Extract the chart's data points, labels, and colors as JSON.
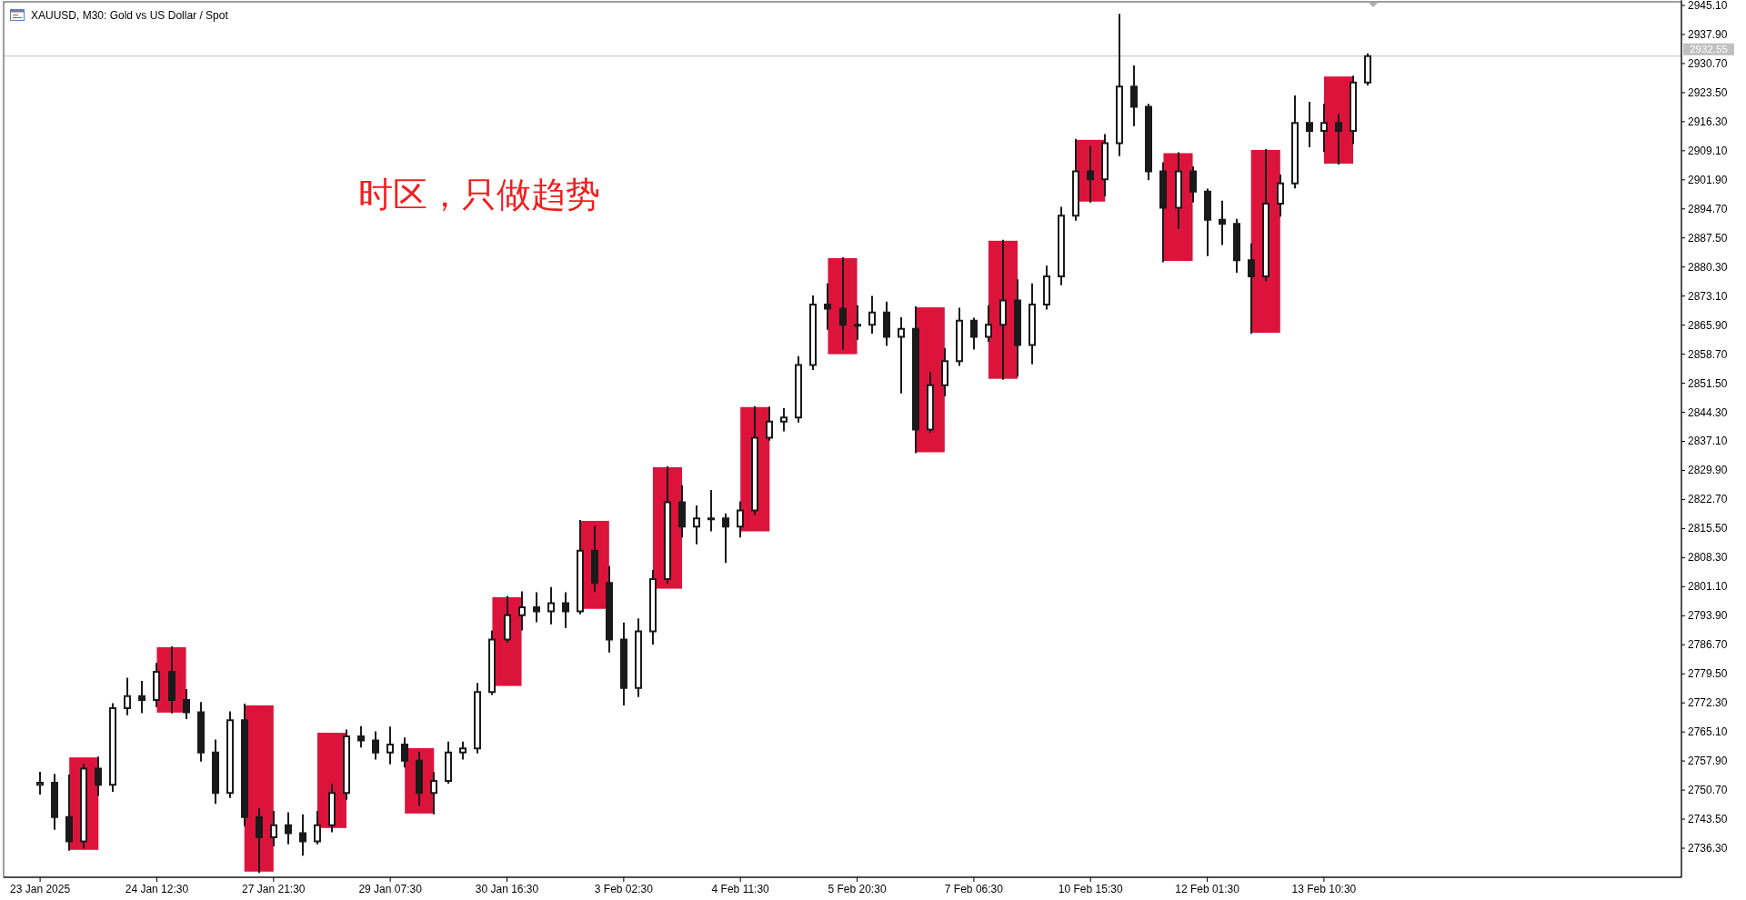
{
  "chart_data": {
    "type": "candlestick",
    "title": "XAUUSD, M30: Gold vs US Dollar / Spot",
    "annotations": [
      "时区，只做趋势"
    ],
    "categories": [
      null,
      null,
      "23 Jan 2025",
      null,
      null,
      null,
      null,
      null,
      null,
      null,
      "24 Jan 12:30",
      null,
      null,
      null,
      null,
      null,
      null,
      null,
      "27 Jan 21:30",
      null,
      null,
      null,
      null,
      null,
      null,
      null,
      "29 Jan 07:30",
      null,
      null,
      null,
      null,
      null,
      null,
      null,
      "30 Jan 16:30",
      null,
      null,
      null,
      null,
      null,
      null,
      null,
      "3 Feb 02:30",
      null,
      null,
      null,
      null,
      null,
      null,
      null,
      "4 Feb 11:30",
      null,
      null,
      null,
      null,
      null,
      null,
      null,
      "5 Feb 20:30",
      null,
      null,
      null,
      null,
      null,
      null,
      null,
      "7 Feb 06:30",
      null,
      null,
      null,
      null,
      null,
      null,
      null,
      "10 Feb 15:30",
      null,
      null,
      null,
      null,
      null,
      null,
      null,
      "12 Feb 01:30",
      null,
      null,
      null,
      null,
      null,
      null,
      null,
      "13 Feb 10:30",
      null,
      null,
      null,
      null,
      null,
      null,
      null,
      null,
      null,
      null,
      null,
      null,
      null,
      null,
      null,
      null,
      null,
      null,
      null,
      null,
      null,
      null,
      null,
      null
    ],
    "ylim": [
      2729.1,
      2946.0
    ],
    "yticks": [
      {
        "value": 2736.3,
        "label": "2736.30"
      },
      {
        "value": 2743.5,
        "label": "2743.50"
      },
      {
        "value": 2750.7,
        "label": "2750.70"
      },
      {
        "value": 2757.9,
        "label": "2757.90"
      },
      {
        "value": 2765.1,
        "label": "2765.10"
      },
      {
        "value": 2772.3,
        "label": "2772.30"
      },
      {
        "value": 2779.5,
        "label": "2779.50"
      },
      {
        "value": 2786.7,
        "label": "2786.70"
      },
      {
        "value": 2793.9,
        "label": "2793.90"
      },
      {
        "value": 2801.1,
        "label": "2801.10"
      },
      {
        "value": 2808.3,
        "label": "2808.30"
      },
      {
        "value": 2815.5,
        "label": "2815.50"
      },
      {
        "value": 2822.7,
        "label": "2822.70"
      },
      {
        "value": 2829.9,
        "label": "2829.90"
      },
      {
        "value": 2837.1,
        "label": "2837.10"
      },
      {
        "value": 2844.3,
        "label": "2844.30"
      },
      {
        "value": 2851.5,
        "label": "2851.50"
      },
      {
        "value": 2858.7,
        "label": "2858.70"
      },
      {
        "value": 2865.9,
        "label": "2865.90"
      },
      {
        "value": 2873.1,
        "label": "2873.10"
      },
      {
        "value": 2880.3,
        "label": "2880.30"
      },
      {
        "value": 2887.5,
        "label": "2887.50"
      },
      {
        "value": 2894.7,
        "label": "2894.70"
      },
      {
        "value": 2901.9,
        "label": "2901.90"
      },
      {
        "value": 2909.1,
        "label": "2909.10"
      },
      {
        "value": 2916.3,
        "label": "2916.30"
      },
      {
        "value": 2923.5,
        "label": "2923.50"
      },
      {
        "value": 2930.7,
        "label": "2930.70"
      },
      {
        "value": 2937.9,
        "label": "2937.90"
      },
      {
        "value": 2945.1,
        "label": "2945.10"
      }
    ],
    "ref_lines": [
      {
        "axis": "y",
        "value": 2932.55,
        "label": "2932.55",
        "color": "#c0c0c0"
      }
    ],
    "series": [
      {
        "type": "bar",
        "color": "#dc143c",
        "values": [
          null,
          null,
          null,
          null,
          null,
          22.9,
          null,
          null,
          null,
          null,
          null,
          16.2,
          null,
          null,
          null,
          null,
          null,
          41.2,
          null,
          null,
          null,
          null,
          23.6,
          null,
          null,
          null,
          null,
          null,
          16.2,
          null,
          null,
          null,
          null,
          null,
          22.0,
          null,
          null,
          null,
          null,
          null,
          21.8,
          null,
          null,
          null,
          null,
          30.1,
          null,
          null,
          null,
          null,
          null,
          30.8,
          null,
          null,
          null,
          null,
          null,
          23.8,
          null,
          null,
          null,
          null,
          null,
          35.9,
          null,
          null,
          null,
          null,
          34.2,
          null,
          null,
          null,
          null,
          null,
          15.3,
          null,
          null,
          null,
          null,
          null,
          26.7,
          null,
          null,
          null,
          null,
          null,
          45.3,
          null,
          null,
          null,
          null,
          21.6,
          null,
          null,
          null,
          null,
          null,
          null,
          null,
          null,
          null,
          null,
          null,
          null,
          null,
          null,
          null,
          null,
          null,
          null,
          null,
          null,
          null,
          null,
          null
        ],
        "base": [
          null,
          null,
          null,
          null,
          null,
          2735.9,
          null,
          null,
          null,
          null,
          null,
          2769.9,
          null,
          null,
          null,
          null,
          null,
          2730.5,
          null,
          null,
          null,
          null,
          2741.3,
          null,
          null,
          null,
          null,
          null,
          2744.9,
          null,
          null,
          null,
          null,
          null,
          2776.5,
          null,
          null,
          null,
          null,
          null,
          2795.6,
          null,
          null,
          null,
          null,
          2800.6,
          null,
          null,
          null,
          null,
          null,
          2814.8,
          null,
          null,
          null,
          null,
          null,
          2858.7,
          null,
          null,
          null,
          null,
          null,
          2834.4,
          null,
          null,
          null,
          null,
          2852.6,
          null,
          null,
          null,
          null,
          null,
          2896.5,
          null,
          null,
          null,
          null,
          null,
          2881.8,
          null,
          null,
          null,
          null,
          null,
          2864.0,
          null,
          null,
          null,
          null,
          2905.9,
          null,
          null,
          null,
          null,
          null,
          null,
          null,
          null,
          null,
          null,
          null,
          null,
          null,
          null,
          null,
          null,
          null,
          null,
          null,
          null,
          null,
          null,
          null
        ]
      },
      {
        "color": "#1a1a1a",
        "ohlc": [
          null,
          null,
          [
            2752,
            2755,
            2749.8,
            2752.5
          ],
          [
            2752.5,
            2754.5,
            2741.1,
            2744
          ],
          [
            2744,
            2754.3,
            2735.9,
            2738
          ],
          [
            2738,
            2757,
            2736.5,
            2756
          ],
          [
            2756,
            2758.8,
            2749.5,
            2752
          ],
          [
            2752,
            2772,
            2750.5,
            2771
          ],
          [
            2771,
            2778.3,
            2769.5,
            2774
          ],
          [
            2774,
            2777.5,
            2770,
            2773
          ],
          [
            2773,
            2782,
            2771.5,
            2780
          ],
          [
            2780,
            2786.1,
            2769.9,
            2773
          ],
          [
            2773,
            2775.5,
            2768.5,
            2770
          ],
          [
            2770,
            2772.3,
            2758,
            2760
          ],
          [
            2760,
            2763,
            2747.5,
            2750
          ],
          [
            2750,
            2770,
            2749,
            2768
          ],
          [
            2768,
            2771.9,
            2742,
            2744
          ],
          [
            2744,
            2746,
            2730.4,
            2739
          ],
          [
            2739,
            2745.3,
            2737,
            2742
          ],
          [
            2742,
            2745,
            2737.5,
            2740
          ],
          [
            2740,
            2744.5,
            2734.7,
            2738
          ],
          [
            2738,
            2745.3,
            2737.5,
            2742
          ],
          [
            2742,
            2752,
            2740.5,
            2750
          ],
          [
            2750,
            2765.5,
            2748.5,
            2764
          ],
          [
            2764,
            2766.3,
            2761.5,
            2763
          ],
          [
            2763,
            2765,
            2758.5,
            2760
          ],
          [
            2760,
            2766.2,
            2757.3,
            2762
          ],
          [
            2762,
            2763.5,
            2756.5,
            2758
          ],
          [
            2758,
            2760,
            2747,
            2750
          ],
          [
            2750,
            2755,
            2744.9,
            2753
          ],
          [
            2753,
            2762.5,
            2752.5,
            2760
          ],
          [
            2760,
            2762.5,
            2758.5,
            2761
          ],
          [
            2761,
            2777,
            2760,
            2775
          ],
          [
            2775,
            2790,
            2774.5,
            2788
          ],
          [
            2788,
            2798.6,
            2787.5,
            2794
          ],
          [
            2794,
            2799.7,
            2790.5,
            2796
          ],
          [
            2796,
            2799.5,
            2792.5,
            2795
          ],
          [
            2795,
            2800.8,
            2792,
            2797
          ],
          [
            2797,
            2799.5,
            2791.1,
            2795
          ],
          [
            2795,
            2817.4,
            2794.5,
            2810
          ],
          [
            2810,
            2816,
            2800,
            2802
          ],
          [
            2802,
            2806,
            2785,
            2788
          ],
          [
            2788,
            2792,
            2771.9,
            2776
          ],
          [
            2776,
            2793,
            2774,
            2790
          ],
          [
            2790,
            2805,
            2787,
            2803
          ],
          [
            2803,
            2830.7,
            2802,
            2822
          ],
          [
            2822,
            2826,
            2813.5,
            2816
          ],
          [
            2816,
            2821,
            2811.8,
            2818
          ],
          [
            2818,
            2824.8,
            2815,
            2818
          ],
          [
            2818,
            2819,
            2807.2,
            2816
          ],
          [
            2816,
            2822,
            2813.5,
            2820
          ],
          [
            2820,
            2845.6,
            2819,
            2838
          ],
          [
            2838,
            2845.5,
            2837.5,
            2842
          ],
          [
            2842,
            2845.1,
            2839.8,
            2843
          ],
          [
            2843,
            2858,
            2842,
            2856
          ],
          [
            2856,
            2873,
            2855,
            2871
          ],
          [
            2871,
            2876,
            2865,
            2870
          ],
          [
            2870,
            2882.5,
            2860,
            2866
          ],
          [
            2866,
            2870.6,
            2862.5,
            2866
          ],
          [
            2866,
            2872.9,
            2864,
            2869
          ],
          [
            2869,
            2871.5,
            2861,
            2863
          ],
          [
            2863,
            2867.6,
            2849.2,
            2865
          ],
          [
            2865,
            2870.3,
            2834.4,
            2840
          ],
          [
            2840,
            2854.1,
            2839.5,
            2851
          ],
          [
            2851,
            2860,
            2848.5,
            2857
          ],
          [
            2857,
            2870,
            2856,
            2867
          ],
          [
            2867,
            2867.5,
            2860.1,
            2863
          ],
          [
            2863,
            2870.6,
            2862,
            2866
          ],
          [
            2866,
            2886.8,
            2852.6,
            2872
          ],
          [
            2872,
            2877,
            2853.4,
            2861
          ],
          [
            2861,
            2876,
            2856.4,
            2871
          ],
          [
            2871,
            2880.4,
            2870,
            2878
          ],
          [
            2878,
            2895,
            2876,
            2893
          ],
          [
            2893,
            2911.8,
            2892,
            2904
          ],
          [
            2904,
            2910,
            2896.5,
            2902
          ],
          [
            2902,
            2913,
            2898,
            2911
          ],
          [
            2911,
            2942.8,
            2908,
            2925
          ],
          [
            2925,
            2930,
            2915.4,
            2920
          ],
          [
            2920,
            2920.5,
            2902,
            2904
          ],
          [
            2904,
            2906,
            2881.7,
            2895
          ],
          [
            2895,
            2908.5,
            2890,
            2904
          ],
          [
            2904,
            2905,
            2896.5,
            2899
          ],
          [
            2899,
            2899.5,
            2883.2,
            2892
          ],
          [
            2892,
            2896.5,
            2886,
            2891
          ],
          [
            2891,
            2892,
            2879.1,
            2882
          ],
          [
            2882,
            2886,
            2864,
            2878
          ],
          [
            2878,
            2909.3,
            2877,
            2896
          ],
          [
            2896,
            2903,
            2893,
            2901
          ],
          [
            2901,
            2922.6,
            2900,
            2916
          ],
          [
            2916,
            2921,
            2910.2,
            2914
          ],
          [
            2914,
            2920.5,
            2909,
            2916
          ],
          [
            2916,
            2918,
            2905.9,
            2914
          ],
          [
            2914,
            2927.5,
            2911,
            2926
          ],
          [
            2926,
            2933,
            2925.5,
            2932.55
          ],
          null,
          null,
          null,
          null,
          null,
          null,
          null,
          null,
          null,
          null,
          null,
          null,
          null,
          null,
          null,
          null,
          null,
          null,
          null,
          null,
          null
        ]
      }
    ]
  }
}
